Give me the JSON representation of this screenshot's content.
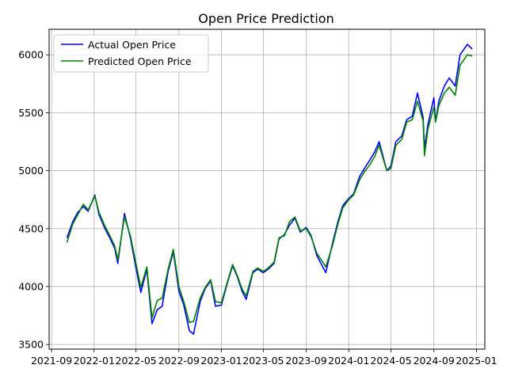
{
  "chart_data": {
    "type": "line",
    "title": "Open Price Prediction",
    "xlabel": "",
    "ylabel": "",
    "xlim": [
      "2021-08-25",
      "2025-01-25"
    ],
    "ylim": [
      3460,
      6220
    ],
    "grid": true,
    "legend_position": "top-left",
    "x_ticks": [
      "2021-09",
      "2022-01",
      "2022-05",
      "2022-09",
      "2023-01",
      "2023-05",
      "2023-09",
      "2024-01",
      "2024-05",
      "2024-09",
      "2025-01"
    ],
    "y_ticks": [
      3500,
      4000,
      4500,
      5000,
      5500,
      6000
    ],
    "x": [
      "2021-10-15",
      "2021-11-01",
      "2021-11-15",
      "2021-12-01",
      "2021-12-15",
      "2022-01-03",
      "2022-01-15",
      "2022-02-01",
      "2022-02-15",
      "2022-03-01",
      "2022-03-10",
      "2022-03-29",
      "2022-04-15",
      "2022-05-01",
      "2022-05-15",
      "2022-06-01",
      "2022-06-16",
      "2022-07-01",
      "2022-07-15",
      "2022-08-01",
      "2022-08-16",
      "2022-09-01",
      "2022-09-15",
      "2022-10-01",
      "2022-10-13",
      "2022-11-01",
      "2022-11-15",
      "2022-12-01",
      "2022-12-15",
      "2023-01-01",
      "2023-01-15",
      "2023-02-02",
      "2023-02-15",
      "2023-03-01",
      "2023-03-13",
      "2023-04-01",
      "2023-04-15",
      "2023-05-01",
      "2023-05-15",
      "2023-06-01",
      "2023-06-15",
      "2023-07-01",
      "2023-07-15",
      "2023-07-31",
      "2023-08-15",
      "2023-09-01",
      "2023-09-15",
      "2023-10-01",
      "2023-10-27",
      "2023-11-15",
      "2023-12-01",
      "2023-12-15",
      "2024-01-01",
      "2024-01-15",
      "2024-02-01",
      "2024-02-15",
      "2024-03-01",
      "2024-03-15",
      "2024-03-28",
      "2024-04-19",
      "2024-05-01",
      "2024-05-15",
      "2024-06-01",
      "2024-06-15",
      "2024-07-01",
      "2024-07-16",
      "2024-08-01",
      "2024-08-05",
      "2024-08-15",
      "2024-09-01",
      "2024-09-06",
      "2024-09-15",
      "2024-10-01",
      "2024-10-15",
      "2024-11-01",
      "2024-11-15",
      "2024-12-06",
      "2024-12-20"
    ],
    "series": [
      {
        "name": "Actual Open Price",
        "color": "#0000ff",
        "values": [
          4420,
          4560,
          4640,
          4690,
          4650,
          4790,
          4620,
          4500,
          4420,
          4330,
          4200,
          4630,
          4420,
          4160,
          3950,
          4150,
          3680,
          3800,
          3830,
          4130,
          4300,
          3960,
          3840,
          3620,
          3590,
          3870,
          3980,
          4050,
          3830,
          3840,
          4000,
          4180,
          4090,
          3960,
          3890,
          4120,
          4150,
          4120,
          4150,
          4200,
          4410,
          4450,
          4530,
          4590,
          4470,
          4510,
          4440,
          4270,
          4120,
          4370,
          4560,
          4700,
          4760,
          4800,
          4950,
          5020,
          5090,
          5160,
          5250,
          5000,
          5040,
          5250,
          5300,
          5440,
          5470,
          5670,
          5460,
          5190,
          5400,
          5630,
          5420,
          5600,
          5730,
          5800,
          5730,
          6000,
          6090,
          6050
        ]
      },
      {
        "name": "Predicted Open Price",
        "color": "#008000",
        "values": [
          4380,
          4540,
          4620,
          4710,
          4660,
          4780,
          4640,
          4520,
          4440,
          4350,
          4230,
          4600,
          4440,
          4200,
          3990,
          4170,
          3730,
          3880,
          3900,
          4150,
          4320,
          4000,
          3870,
          3690,
          3700,
          3900,
          3990,
          4060,
          3870,
          3860,
          4010,
          4190,
          4100,
          3980,
          3920,
          4130,
          4160,
          4130,
          4160,
          4210,
          4420,
          4440,
          4560,
          4600,
          4480,
          4500,
          4430,
          4290,
          4170,
          4350,
          4540,
          4680,
          4750,
          4790,
          4920,
          4990,
          5050,
          5120,
          5220,
          5000,
          5020,
          5220,
          5270,
          5420,
          5440,
          5600,
          5430,
          5130,
          5360,
          5550,
          5420,
          5560,
          5670,
          5720,
          5650,
          5910,
          6000,
          5990
        ]
      }
    ]
  },
  "legend": {
    "items": [
      {
        "label": "Actual Open Price",
        "color": "#0000ff"
      },
      {
        "label": "Predicted Open Price",
        "color": "#008000"
      }
    ]
  }
}
